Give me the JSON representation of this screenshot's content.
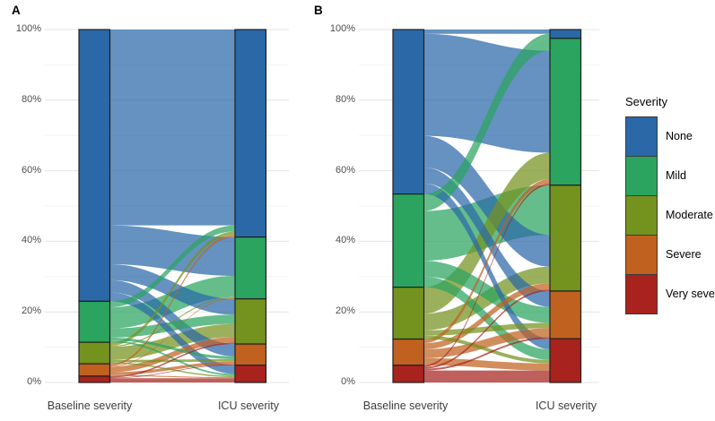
{
  "figure": {
    "background": "#ffffff"
  },
  "categories": [
    {
      "name": "None",
      "color": "#2a68a8"
    },
    {
      "name": "Mild",
      "color": "#2aa45e"
    },
    {
      "name": "Moderate",
      "color": "#74921e"
    },
    {
      "name": "Severe",
      "color": "#c0611f"
    },
    {
      "name": "Very severe",
      "color": "#a8231d"
    }
  ],
  "legend": {
    "title": "Severity",
    "items": [
      {
        "label": "None",
        "color": "#2a68a8"
      },
      {
        "label": "Mild",
        "color": "#2aa45e"
      },
      {
        "label": "Moderate",
        "color": "#74921e"
      },
      {
        "label": "Severe",
        "color": "#c0611f"
      },
      {
        "label": "Very severe",
        "color": "#a8231d"
      }
    ]
  },
  "chart_data": [
    {
      "type": "alluvial",
      "panel_label": "A",
      "axes": [
        "Baseline severity",
        "ICU severity"
      ],
      "yticks": [
        "0%",
        "20%",
        "40%",
        "60%",
        "80%",
        "100%"
      ],
      "ylim": [
        0,
        100
      ],
      "grid": "horizontal-major-minor",
      "baseline_totals": {
        "None": 77.0,
        "Mild": 11.6,
        "Moderate": 6.1,
        "Severe": 3.5,
        "Very severe": 1.8
      },
      "icu_totals": {
        "None": 58.8,
        "Mild": 17.5,
        "Moderate": 12.8,
        "Severe": 6.0,
        "Very severe": 4.9
      },
      "flows": [
        {
          "from": "None",
          "to": "None",
          "value": 55.5
        },
        {
          "from": "None",
          "to": "Mild",
          "value": 11.0
        },
        {
          "from": "None",
          "to": "Moderate",
          "value": 4.5
        },
        {
          "from": "None",
          "to": "Severe",
          "value": 3.5
        },
        {
          "from": "None",
          "to": "Very severe",
          "value": 2.5
        },
        {
          "from": "Mild",
          "to": "None",
          "value": 1.7
        },
        {
          "from": "Mild",
          "to": "Mild",
          "value": 6.0
        },
        {
          "from": "Mild",
          "to": "Moderate",
          "value": 2.6
        },
        {
          "from": "Mild",
          "to": "Severe",
          "value": 0.8
        },
        {
          "from": "Mild",
          "to": "Very severe",
          "value": 0.5
        },
        {
          "from": "Moderate",
          "to": "None",
          "value": 1.0
        },
        {
          "from": "Moderate",
          "to": "Mild",
          "value": 0.3
        },
        {
          "from": "Moderate",
          "to": "Moderate",
          "value": 3.7
        },
        {
          "from": "Moderate",
          "to": "Severe",
          "value": 0.7
        },
        {
          "from": "Moderate",
          "to": "Very severe",
          "value": 0.4
        },
        {
          "from": "Severe",
          "to": "None",
          "value": 0.6
        },
        {
          "from": "Severe",
          "to": "Mild",
          "value": 0.2
        },
        {
          "from": "Severe",
          "to": "Moderate",
          "value": 1.6
        },
        {
          "from": "Severe",
          "to": "Severe",
          "value": 0.8
        },
        {
          "from": "Severe",
          "to": "Very severe",
          "value": 0.3
        },
        {
          "from": "Very severe",
          "to": "Moderate",
          "value": 0.4
        },
        {
          "from": "Very severe",
          "to": "Severe",
          "value": 0.2
        },
        {
          "from": "Very severe",
          "to": "Very severe",
          "value": 1.2
        }
      ],
      "right_order": {}
    },
    {
      "type": "alluvial",
      "panel_label": "B",
      "axes": [
        "Baseline severity",
        "ICU severity"
      ],
      "yticks": [
        "0%",
        "20%",
        "40%",
        "60%",
        "80%",
        "100%"
      ],
      "ylim": [
        0,
        100
      ],
      "grid": "horizontal-major-minor",
      "baseline_totals": {
        "None": 46.6,
        "Mild": 26.4,
        "Moderate": 14.7,
        "Severe": 7.4,
        "Very severe": 4.9
      },
      "icu_totals": {
        "None": 2.5,
        "Mild": 41.6,
        "Moderate": 30.0,
        "Severe": 13.5,
        "Very severe": 12.4
      },
      "flows": [
        {
          "from": "None",
          "to": "None",
          "value": 1.2
        },
        {
          "from": "None",
          "to": "Mild",
          "value": 28.9
        },
        {
          "from": "None",
          "to": "Moderate",
          "value": 9.0
        },
        {
          "from": "None",
          "to": "Severe",
          "value": 4.5
        },
        {
          "from": "None",
          "to": "Very severe",
          "value": 3.0
        },
        {
          "from": "Mild",
          "to": "None",
          "value": 1.3
        },
        {
          "from": "Mild",
          "to": "Mild",
          "value": 3.5
        },
        {
          "from": "Mild",
          "to": "Moderate",
          "value": 14.1
        },
        {
          "from": "Mild",
          "to": "Severe",
          "value": 4.5
        },
        {
          "from": "Mild",
          "to": "Very severe",
          "value": 3.0
        },
        {
          "from": "Moderate",
          "to": "Mild",
          "value": 7.5
        },
        {
          "from": "Moderate",
          "to": "Moderate",
          "value": 4.7
        },
        {
          "from": "Moderate",
          "to": "Severe",
          "value": 1.5
        },
        {
          "from": "Moderate",
          "to": "Very severe",
          "value": 1.0
        },
        {
          "from": "Severe",
          "to": "Mild",
          "value": 1.2
        },
        {
          "from": "Severe",
          "to": "Moderate",
          "value": 1.7
        },
        {
          "from": "Severe",
          "to": "Severe",
          "value": 2.5
        },
        {
          "from": "Severe",
          "to": "Very severe",
          "value": 2.0
        },
        {
          "from": "Very severe",
          "to": "Mild",
          "value": 0.5
        },
        {
          "from": "Very severe",
          "to": "Moderate",
          "value": 0.5
        },
        {
          "from": "Very severe",
          "to": "Severe",
          "value": 0.5
        },
        {
          "from": "Very severe",
          "to": "Very severe",
          "value": 3.4
        }
      ],
      "right_order": {
        "Mild": [
          "Mild",
          "None",
          "Moderate",
          "Severe",
          "Very severe"
        ],
        "Moderate": [
          "Mild",
          "None",
          "Moderate",
          "Severe",
          "Very severe"
        ]
      }
    }
  ]
}
